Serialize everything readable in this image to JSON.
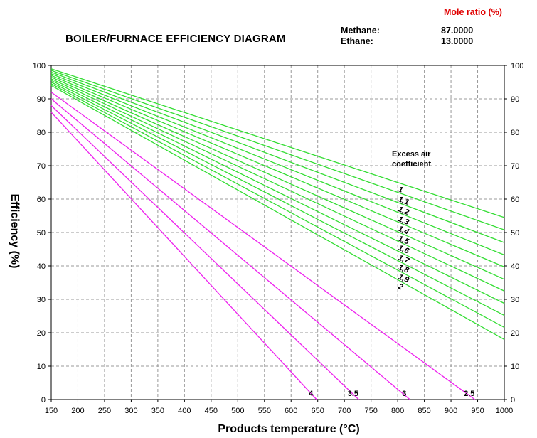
{
  "header": {
    "title": "BOILER/FURNACE EFFICIENCY DIAGRAM",
    "mole_ratio_label": "Mole ratio (%)",
    "gases": [
      {
        "name": "Methane:",
        "value": "87.0000"
      },
      {
        "name": "Ethane:",
        "value": "13.0000"
      }
    ]
  },
  "colors": {
    "excess_air_line": "#33dd33",
    "loss_line": "#ee22ee",
    "grid": "#999999",
    "mole_ratio_text": "#e00000"
  },
  "chart_data": {
    "type": "line",
    "title": "BOILER/FURNACE EFFICIENCY DIAGRAM",
    "xlabel": "Products temperature (°C)",
    "ylabel": "Efficiency (%)",
    "xlim": [
      150,
      1000
    ],
    "ylim": [
      0,
      100
    ],
    "xticks": [
      150,
      200,
      250,
      300,
      350,
      400,
      450,
      500,
      550,
      600,
      650,
      700,
      750,
      800,
      850,
      900,
      950,
      1000
    ],
    "yticks": [
      0,
      10,
      20,
      30,
      40,
      50,
      60,
      70,
      80,
      90,
      100
    ],
    "grid": true,
    "excess_air_label": [
      "Excess air",
      "coefficient"
    ],
    "excess_air_series": [
      {
        "name": "1",
        "label": "1",
        "x": [
          150,
          1000
        ],
        "y": [
          99,
          54.5
        ]
      },
      {
        "name": "1.1",
        "label": "1,1",
        "x": [
          150,
          1000
        ],
        "y": [
          98.5,
          50.8
        ]
      },
      {
        "name": "1.2",
        "label": "1,2",
        "x": [
          150,
          1000
        ],
        "y": [
          98,
          47
        ]
      },
      {
        "name": "1.3",
        "label": "1,3",
        "x": [
          150,
          1000
        ],
        "y": [
          97.5,
          43.3
        ]
      },
      {
        "name": "1.4",
        "label": "1,4",
        "x": [
          150,
          1000
        ],
        "y": [
          97,
          39.7
        ]
      },
      {
        "name": "1.5",
        "label": "1,5",
        "x": [
          150,
          1000
        ],
        "y": [
          96.5,
          36
        ]
      },
      {
        "name": "1.6",
        "label": "1,6",
        "x": [
          150,
          1000
        ],
        "y": [
          96,
          32.5
        ]
      },
      {
        "name": "1.7",
        "label": "1,7",
        "x": [
          150,
          1000
        ],
        "y": [
          95.5,
          28.8
        ]
      },
      {
        "name": "1.8",
        "label": "1,8",
        "x": [
          150,
          1000
        ],
        "y": [
          95,
          25.2
        ]
      },
      {
        "name": "1.9",
        "label": "1,9",
        "x": [
          150,
          1000
        ],
        "y": [
          94.5,
          21.6
        ]
      },
      {
        "name": "2",
        "label": "2",
        "x": [
          150,
          1000
        ],
        "y": [
          94,
          18
        ]
      }
    ],
    "loss_series": [
      {
        "name": "2.5",
        "label": "2.5",
        "x": [
          150,
          945
        ],
        "y": [
          92,
          0
        ]
      },
      {
        "name": "3",
        "label": "3",
        "x": [
          150,
          823
        ],
        "y": [
          90,
          0
        ]
      },
      {
        "name": "3.5",
        "label": "3.5",
        "x": [
          150,
          727
        ],
        "y": [
          88,
          0
        ]
      },
      {
        "name": "4",
        "label": "4",
        "x": [
          150,
          648
        ],
        "y": [
          86,
          0
        ]
      }
    ]
  }
}
